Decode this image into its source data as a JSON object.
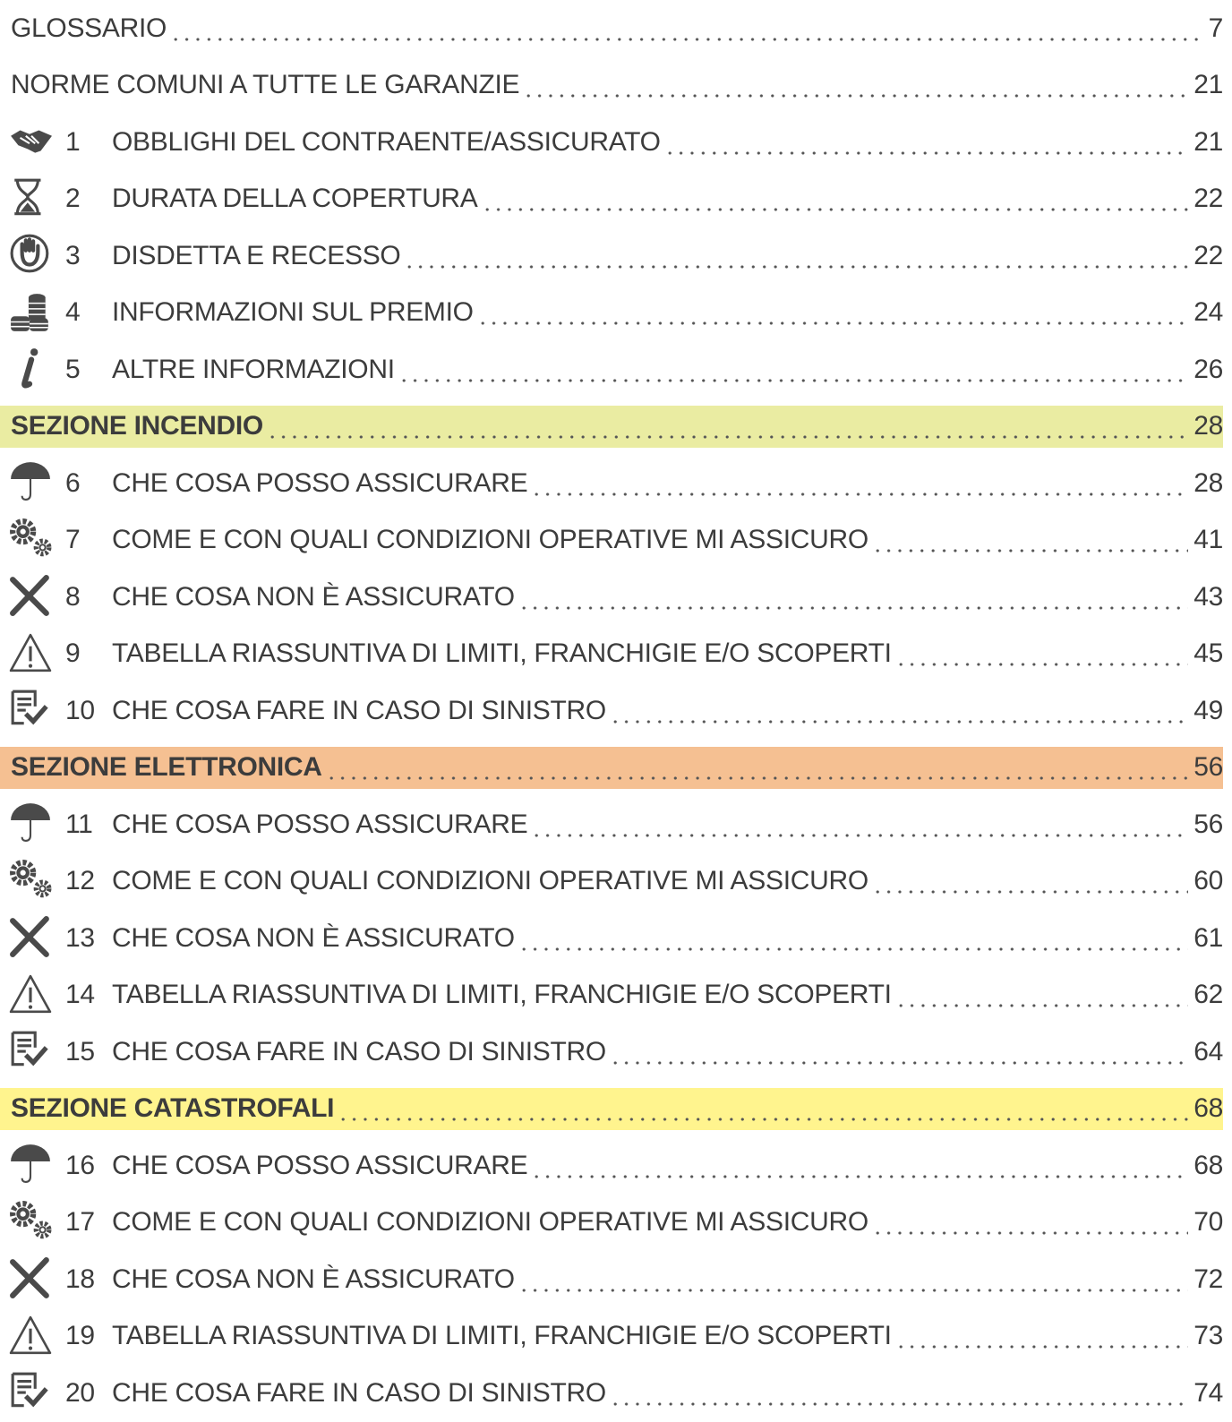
{
  "entries": [
    {
      "title": "GLOSSARIO",
      "page": 7
    },
    {
      "title": "NORME COMUNI A TUTTE LE GARANZIE",
      "page": 21
    },
    {
      "number": 1,
      "title": "OBBLIGHI DEL CONTRAENTE/ASSICURATO",
      "page": 21
    },
    {
      "number": 2,
      "title": "DURATA DELLA COPERTURA",
      "page": 22
    },
    {
      "number": 3,
      "title": "DISDETTA E RECESSO",
      "page": 22
    },
    {
      "number": 4,
      "title": "INFORMAZIONI SUL PREMIO",
      "page": 24
    },
    {
      "number": 5,
      "title": "ALTRE INFORMAZIONI",
      "page": 26
    },
    {
      "title": "SEZIONE INCENDIO",
      "page": 28,
      "highlight": "#eaeca2"
    },
    {
      "number": 6,
      "title": "CHE COSA POSSO ASSICURARE",
      "page": 28
    },
    {
      "number": 7,
      "title": "COME E CON QUALI CONDIZIONI OPERATIVE MI ASSICURO",
      "page": 41
    },
    {
      "number": 8,
      "title": "CHE COSA NON È ASSICURATO",
      "page": 43
    },
    {
      "number": 9,
      "title": "TABELLA RIASSUNTIVA DI LIMITI, FRANCHIGIE E/O SCOPERTI",
      "page": 45
    },
    {
      "number": 10,
      "title": "CHE COSA FARE IN CASO DI SINISTRO",
      "page": 49
    },
    {
      "title": "SEZIONE ELETTRONICA",
      "page": 56,
      "highlight": "#f5c092"
    },
    {
      "number": 11,
      "title": "CHE COSA POSSO ASSICURARE",
      "page": 56
    },
    {
      "number": 12,
      "title": "COME E CON QUALI CONDIZIONI OPERATIVE MI ASSICURO",
      "page": 60
    },
    {
      "number": 13,
      "title": "CHE COSA NON È ASSICURATO",
      "page": 61
    },
    {
      "number": 14,
      "title": "TABELLA RIASSUNTIVA DI LIMITI, FRANCHIGIE E/O SCOPERTI",
      "page": 62
    },
    {
      "number": 15,
      "title": "CHE COSA FARE IN CASO DI SINISTRO",
      "page": 64
    },
    {
      "title": "SEZIONE CATASTROFALI",
      "page": 68,
      "highlight": "#fff48e"
    },
    {
      "number": 16,
      "title": "CHE COSA POSSO ASSICURARE",
      "page": 68
    },
    {
      "number": 17,
      "title": "COME E CON QUALI CONDIZIONI OPERATIVE MI ASSICURO",
      "page": 70
    },
    {
      "number": 18,
      "title": "CHE COSA NON È ASSICURATO",
      "page": 72
    },
    {
      "number": 19,
      "title": "TABELLA RIASSUNTIVA DI LIMITI, FRANCHIGIE E/O SCOPERTI",
      "page": 73
    },
    {
      "number": 20,
      "title": "CHE COSA FARE IN CASO DI SINISTRO",
      "page": 74
    }
  ]
}
